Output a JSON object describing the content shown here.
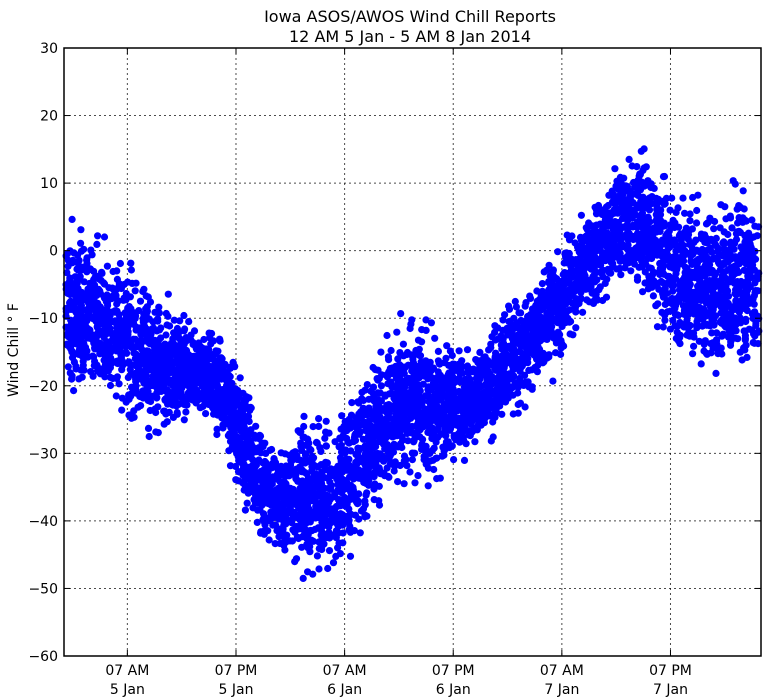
{
  "chart_data": {
    "type": "scatter",
    "title": "Iowa ASOS/AWOS Wind Chill Reports",
    "subtitle": "12 AM 5 Jan - 5 AM 8 Jan 2014",
    "ylabel": "Wind Chill ° F",
    "xlabel": "",
    "ylim": [
      -60,
      30
    ],
    "xlim": [
      "2014-01-05 00:00",
      "2014-01-08 05:00"
    ],
    "yticks": [
      30,
      20,
      10,
      0,
      -10,
      -20,
      -30,
      -40,
      -50,
      -60
    ],
    "ytick_labels": [
      "30",
      "20",
      "10",
      "0",
      "−10",
      "−20",
      "−30",
      "−40",
      "−50",
      "−60"
    ],
    "xticks": [
      {
        "x": "2014-01-05 07:00",
        "line1": "07 AM",
        "line2": "5 Jan"
      },
      {
        "x": "2014-01-05 19:00",
        "line1": "07 PM",
        "line2": "5 Jan"
      },
      {
        "x": "2014-01-06 07:00",
        "line1": "07 AM",
        "line2": "6 Jan"
      },
      {
        "x": "2014-01-06 19:00",
        "line1": "07 PM",
        "line2": "6 Jan"
      },
      {
        "x": "2014-01-07 07:00",
        "line1": "07 AM",
        "line2": "7 Jan"
      },
      {
        "x": "2014-01-07 19:00",
        "line1": "07 PM",
        "line2": "7 Jan"
      }
    ],
    "grid": true,
    "marker_color": "#0000ff",
    "series": [
      {
        "x": [
          "2014-01-05 00:00",
          "2014-01-05 02:00",
          "2014-01-05 04:00",
          "2014-01-05 06:00",
          "2014-01-05 08:00",
          "2014-01-05 10:00",
          "2014-01-05 12:00",
          "2014-01-05 14:00",
          "2014-01-05 16:00",
          "2014-01-05 18:00",
          "2014-01-05 20:00",
          "2014-01-05 22:00",
          "2014-01-06 00:00",
          "2014-01-06 02:00",
          "2014-01-06 04:00",
          "2014-01-06 06:00",
          "2014-01-06 08:00",
          "2014-01-06 10:00",
          "2014-01-06 12:00",
          "2014-01-06 14:00",
          "2014-01-06 16:00",
          "2014-01-06 18:00",
          "2014-01-06 20:00",
          "2014-01-06 22:00",
          "2014-01-07 00:00",
          "2014-01-07 02:00",
          "2014-01-07 04:00",
          "2014-01-07 06:00",
          "2014-01-07 08:00",
          "2014-01-07 10:00",
          "2014-01-07 12:00",
          "2014-01-07 14:00",
          "2014-01-07 16:00",
          "2014-01-07 18:00",
          "2014-01-07 20:00",
          "2014-01-07 22:00",
          "2014-01-08 00:00",
          "2014-01-08 02:00",
          "2014-01-08 04:00"
        ],
        "y_max": [
          7,
          6,
          4,
          2,
          0,
          -3,
          -7,
          -9,
          -10,
          -11,
          -18,
          -25,
          -27,
          -23,
          -22,
          -22,
          -18,
          -14,
          -10,
          -8,
          -8,
          -11,
          -13,
          -13,
          -8,
          -4,
          -2,
          2,
          4,
          8,
          14,
          16,
          18,
          14,
          12,
          10,
          12,
          14,
          10
        ],
        "y_min": [
          -22,
          -24,
          -26,
          -27,
          -29,
          -31,
          -29,
          -27,
          -27,
          -32,
          -42,
          -45,
          -47,
          -49,
          -51,
          -50,
          -46,
          -42,
          -38,
          -37,
          -37,
          -35,
          -32,
          -30,
          -29,
          -27,
          -22,
          -20,
          -15,
          -12,
          -9,
          -6,
          -10,
          -14,
          -18,
          -20,
          -23,
          -22,
          -20
        ]
      }
    ]
  }
}
